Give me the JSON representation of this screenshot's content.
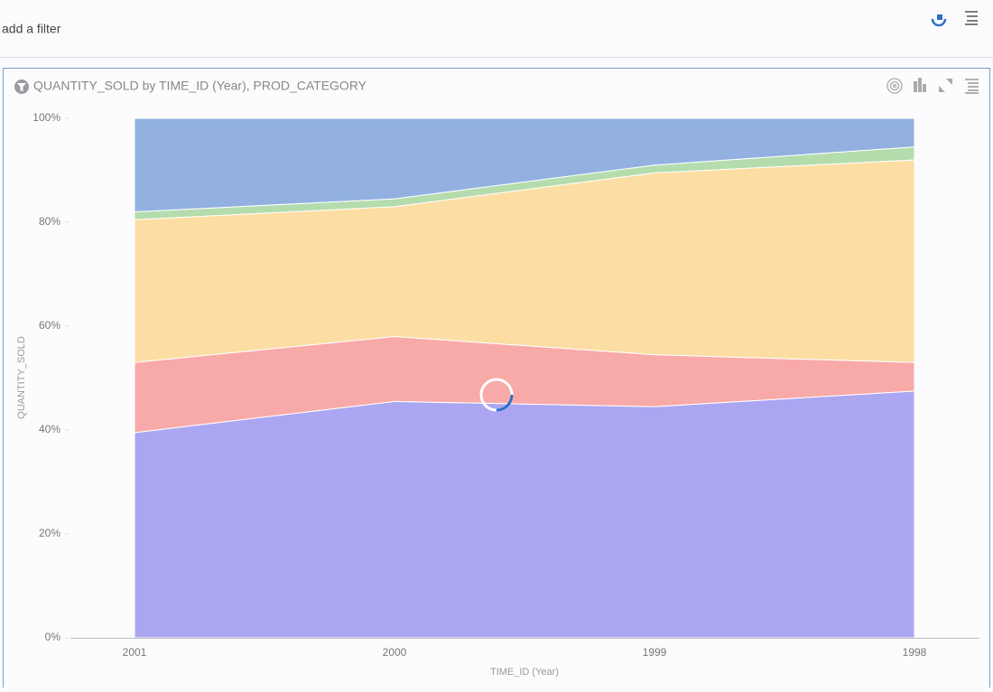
{
  "header": {
    "filter_placeholder": "add a filter"
  },
  "chart_data": {
    "type": "stacked-area",
    "title": "QUANTITY_SOLD by TIME_ID (Year), PROD_CATEGORY",
    "x_label": "TIME_ID (Year)",
    "y_label": "QUANTITY_SOLD",
    "categories": [
      "2001",
      "2000",
      "1999",
      "1998"
    ],
    "series": [
      {
        "color": "#aba6f1",
        "values": [
          39.5,
          45.5,
          44.5,
          47.5
        ]
      },
      {
        "color": "#f8aaa8",
        "values": [
          13.5,
          12.5,
          10,
          5.5
        ]
      },
      {
        "color": "#fcdda3",
        "values": [
          27.5,
          25,
          35,
          39
        ]
      },
      {
        "color": "#b5dcac",
        "values": [
          1.5,
          1.5,
          1.5,
          2.5
        ]
      },
      {
        "color": "#92b1e0",
        "values": [
          18,
          15.5,
          9,
          5.5
        ]
      }
    ],
    "ylim": [
      0,
      100
    ],
    "yticks": [
      {
        "value": 0,
        "label": "0%"
      },
      {
        "value": 20,
        "label": "20%"
      },
      {
        "value": 40,
        "label": "40%"
      },
      {
        "value": 60,
        "label": "60%"
      },
      {
        "value": 80,
        "label": "80%"
      },
      {
        "value": 100,
        "label": "100%"
      }
    ]
  }
}
